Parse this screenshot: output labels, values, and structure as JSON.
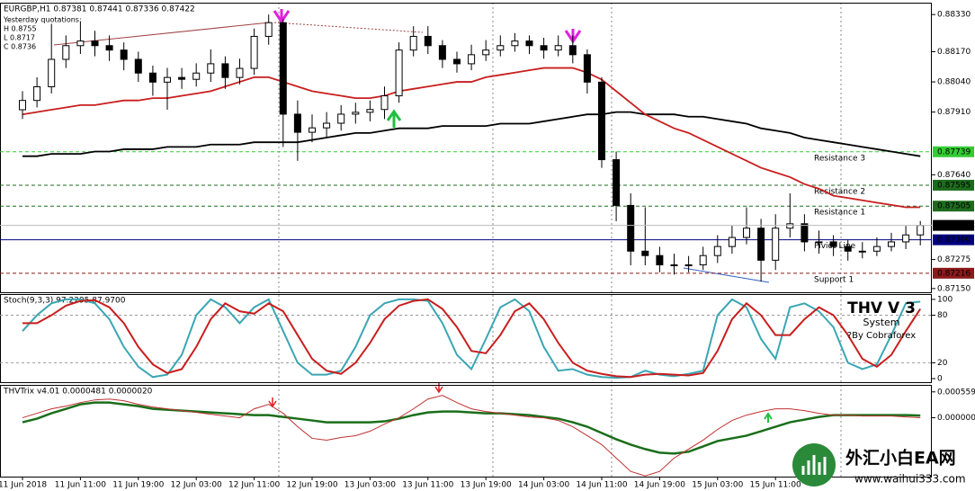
{
  "chart_data": [
    {
      "type": "candlestick",
      "title": "EURGBP,H1 0.87381 0.87441 0.87336 0.87422",
      "annotations": [
        "Yesterday quotations:",
        "H 0.8755",
        "L 0.8717",
        "C 0.8736"
      ],
      "categories": [
        "11 Jun 2018",
        null,
        null,
        null,
        "11 Jun 11:00",
        null,
        null,
        null,
        "11 Jun 19:00",
        null,
        null,
        null,
        "12 Jun 03:00",
        null,
        null,
        null,
        "12 Jun 11:00",
        null,
        null,
        null,
        "12 Jun 19:00",
        null,
        null,
        null,
        "13 Jun 03:00",
        null,
        null,
        null,
        "13 Jun 11:00",
        null,
        null,
        null,
        "13 Jun 19:00",
        null,
        null,
        null,
        "14 Jun 03:00",
        null,
        null,
        null,
        "14 Jun 11:00",
        null,
        null,
        null,
        "14 Jun 19:00",
        null,
        null,
        null,
        "15 Jun 03:00",
        null,
        null,
        null,
        "15 Jun 11:00",
        null,
        null,
        null,
        null,
        null,
        null,
        null,
        null,
        null,
        null
      ],
      "open": [
        0.8792,
        0.8796,
        0.88019,
        0.88137,
        0.88196,
        0.88216,
        0.88196,
        0.88177,
        0.88137,
        0.88078,
        0.88039,
        0.88059,
        0.88051,
        0.88078,
        0.88118,
        0.88059,
        0.88098,
        0.88236,
        0.88295,
        0.87901,
        0.87823,
        0.87842,
        0.87862,
        0.87901,
        0.87909,
        0.87921,
        0.8798,
        0.88177,
        0.88236,
        0.88196,
        0.88137,
        0.88118,
        0.88157,
        0.88177,
        0.88196,
        0.88216,
        0.88196,
        0.88177,
        0.88196,
        0.88157,
        0.88039,
        0.87705,
        0.87508,
        0.87311,
        0.87292,
        0.87252,
        0.87252,
        0.87252,
        0.87292,
        0.87331,
        0.8737,
        0.8741,
        0.87272,
        0.8741,
        0.87429,
        0.87351,
        0.87351,
        0.87331,
        0.87311,
        0.87311,
        0.87331,
        0.87351,
        0.87381
      ],
      "high": [
        0.88,
        0.8806,
        0.8829,
        0.8824,
        0.883,
        0.8826,
        0.8824,
        0.8821,
        0.8817,
        0.8811,
        0.881,
        0.881,
        0.8812,
        0.8818,
        0.8815,
        0.8814,
        0.8827,
        0.8833,
        0.8831,
        0.8796,
        0.879,
        0.8791,
        0.8794,
        0.8795,
        0.8796,
        0.8802,
        0.8821,
        0.8828,
        0.8828,
        0.8822,
        0.8817,
        0.882,
        0.8822,
        0.8824,
        0.8825,
        0.8824,
        0.8823,
        0.8824,
        0.8824,
        0.8818,
        0.8806,
        0.8774,
        0.8756,
        0.875,
        0.8733,
        0.873,
        0.8729,
        0.8733,
        0.8738,
        0.8742,
        0.875,
        0.8745,
        0.8747,
        0.8756,
        0.8747,
        0.874,
        0.8738,
        0.8736,
        0.8735,
        0.8737,
        0.8739,
        0.8742,
        0.87441
      ],
      "low": [
        0.8788,
        0.8793,
        0.8799,
        0.881,
        0.8816,
        0.8815,
        0.8813,
        0.8809,
        0.8804,
        0.8798,
        0.8792,
        0.8801,
        0.8802,
        0.8804,
        0.8801,
        0.8803,
        0.8807,
        0.882,
        0.8776,
        0.877,
        0.8778,
        0.878,
        0.8783,
        0.8786,
        0.8787,
        0.8788,
        0.8795,
        0.8815,
        0.8816,
        0.881,
        0.8808,
        0.8809,
        0.8813,
        0.8815,
        0.8817,
        0.8816,
        0.8814,
        0.8815,
        0.8812,
        0.8799,
        0.8767,
        0.8744,
        0.8725,
        0.8725,
        0.8722,
        0.8721,
        0.8722,
        0.8723,
        0.8726,
        0.873,
        0.8734,
        0.8718,
        0.8723,
        0.8737,
        0.8731,
        0.873,
        0.8729,
        0.8727,
        0.8728,
        0.8729,
        0.8731,
        0.8732,
        0.87336
      ],
      "close": [
        0.8796,
        0.88019,
        0.88137,
        0.88196,
        0.88216,
        0.88196,
        0.88177,
        0.88137,
        0.88078,
        0.88039,
        0.88059,
        0.88051,
        0.88078,
        0.88118,
        0.88059,
        0.88098,
        0.88236,
        0.88295,
        0.87901,
        0.87823,
        0.87842,
        0.87862,
        0.87901,
        0.87909,
        0.87921,
        0.8798,
        0.88177,
        0.88236,
        0.88196,
        0.88137,
        0.88118,
        0.88157,
        0.88177,
        0.88196,
        0.88216,
        0.88196,
        0.88177,
        0.88196,
        0.88157,
        0.88039,
        0.87705,
        0.87508,
        0.87311,
        0.87292,
        0.87252,
        0.87252,
        0.87252,
        0.87292,
        0.87331,
        0.8737,
        0.8741,
        0.87272,
        0.8741,
        0.87429,
        0.87351,
        0.87351,
        0.87331,
        0.87311,
        0.87311,
        0.87331,
        0.87351,
        0.87381,
        0.87422
      ],
      "up_color": "#ffffff",
      "down_color": "#000000",
      "lines": [
        {
          "color": "#000000",
          "values": [
            0.8772,
            0.8772,
            0.8773,
            0.8773,
            0.8773,
            0.8774,
            0.8774,
            0.8775,
            0.8775,
            0.8775,
            0.8776,
            0.8776,
            0.8776,
            0.8777,
            0.8777,
            0.8777,
            0.8778,
            0.8778,
            0.8778,
            0.8778,
            0.8779,
            0.878,
            0.8781,
            0.8782,
            0.8782,
            0.8783,
            0.8784,
            0.8784,
            0.8784,
            0.8785,
            0.8785,
            0.8785,
            0.8785,
            0.8786,
            0.8786,
            0.8786,
            0.8787,
            0.8788,
            0.8789,
            0.879,
            0.879,
            0.8791,
            0.8791,
            0.879,
            0.879,
            0.879,
            0.8789,
            0.8789,
            0.8788,
            0.8787,
            0.8786,
            0.8784,
            0.8783,
            0.8782,
            0.878,
            0.8779,
            0.8778,
            0.8777,
            0.8776,
            0.8775,
            0.8774,
            0.8773,
            0.8772
          ]
        },
        {
          "color": "#c81e1e",
          "values": [
            0.879,
            0.8791,
            0.8792,
            0.8793,
            0.8794,
            0.8794,
            0.8795,
            0.8796,
            0.8796,
            0.8797,
            0.8797,
            0.8798,
            0.8799,
            0.88,
            0.8802,
            0.8804,
            0.8806,
            0.8806,
            0.8804,
            0.8802,
            0.88,
            0.8799,
            0.8798,
            0.8797,
            0.8797,
            0.8798,
            0.88,
            0.8801,
            0.8802,
            0.8803,
            0.8804,
            0.8804,
            0.8806,
            0.8807,
            0.8808,
            0.8809,
            0.881,
            0.881,
            0.881,
            0.8808,
            0.8805,
            0.88,
            0.8795,
            0.879,
            0.8787,
            0.8784,
            0.8782,
            0.8779,
            0.8776,
            0.8773,
            0.877,
            0.8767,
            0.8765,
            0.8763,
            0.876,
            0.8758,
            0.8755,
            0.8754,
            0.8753,
            0.8752,
            0.8751,
            0.875,
            0.875
          ]
        }
      ],
      "levels": [
        {
          "name": "Resistance 3",
          "value": 0.87739,
          "color": "#33cc33",
          "label_color": "#2db82d"
        },
        {
          "name": "Resistance 2",
          "value": 0.87595,
          "color": "#1e6b1e",
          "label_color": "#8b3010"
        },
        {
          "name": "Resistance 1",
          "value": 0.87505,
          "color": "#1e6b1e",
          "label_color": "#2a7d2a"
        },
        {
          "name": "Piviot Line",
          "value": 0.8736,
          "value_label": "0.87360",
          "color": "#000080",
          "label_color": "#000080"
        },
        {
          "name": "Support 1",
          "value": 0.87216,
          "color": "#8b1a1a",
          "label_color": "#8b1a1a"
        }
      ],
      "current_color": "#000000",
      "ylim": [
        0.87134,
        0.88381
      ],
      "yticks": [
        {
          "value": 0.8833,
          "label": "0.88330"
        },
        {
          "value": 0.8817,
          "label": "0.88170"
        },
        {
          "value": 0.8804,
          "label": "0.88040"
        },
        {
          "value": 0.8791,
          "label": "0.87910"
        },
        {
          "value": 0.8764,
          "label": "0.87640"
        },
        0.87275,
        {
          "value": 0.8715,
          "label": "0.87150"
        }
      ]
    },
    {
      "type": "line",
      "title": "Stoch(9,3,3) 97.2295 87.9700",
      "annotations": [
        "THV V 3",
        "System",
        "?By Cobraforex"
      ],
      "series": [
        {
          "color": "#3aa6b4",
          "values": [
            60,
            80,
            95,
            100,
            100,
            95,
            75,
            40,
            15,
            2,
            5,
            30,
            80,
            100,
            90,
            70,
            90,
            100,
            60,
            20,
            5,
            5,
            10,
            40,
            80,
            95,
            100,
            100,
            98,
            70,
            30,
            12,
            50,
            90,
            100,
            85,
            40,
            10,
            12,
            5,
            2,
            1,
            2,
            10,
            5,
            3,
            6,
            10,
            80,
            100,
            90,
            50,
            25,
            90,
            95,
            85,
            65,
            20,
            12,
            18,
            55,
            95,
            97.2295
          ]
        },
        {
          "color": "#c81e1e",
          "values": [
            70,
            70,
            80,
            92,
            98,
            99,
            90,
            70,
            40,
            18,
            7,
            12,
            40,
            75,
            95,
            85,
            82,
            95,
            85,
            55,
            25,
            10,
            6,
            20,
            45,
            75,
            92,
            98,
            100,
            88,
            65,
            35,
            32,
            55,
            85,
            95,
            75,
            45,
            20,
            10,
            6,
            3,
            2,
            5,
            6,
            5,
            4,
            7,
            35,
            75,
            95,
            80,
            55,
            55,
            75,
            90,
            80,
            55,
            25,
            15,
            30,
            60,
            87.97
          ]
        }
      ],
      "ylim": [
        -4.5,
        106.7
      ],
      "yticks": [
        100,
        80,
        20,
        0
      ]
    },
    {
      "type": "line",
      "title": "THVTrix v4.01 0.0000481 0.0000020",
      "series": [
        {
          "color": "#1a6e1a",
          "width": 2.5,
          "values": [
            -9.7e-05,
            -1.9e-05,
            9.7e-05,
            0.000193,
            0.00029,
            0.000328,
            0.000328,
            0.00029,
            0.000251,
            0.000193,
            0.000174,
            0.000154,
            0.000135,
            0.000116,
            9.7e-05,
            7.7e-05,
            5.8e-05,
            5.8e-05,
            1.9e-05,
            -1.9e-05,
            -5.8e-05,
            -9.7e-05,
            -9.7e-05,
            -9.7e-05,
            -9.7e-05,
            -7.7e-05,
            -1.9e-05,
            5.8e-05,
            0.000116,
            0.000135,
            0.000135,
            0.000116,
            9.7e-05,
            9.7e-05,
            7.7e-05,
            5.8e-05,
            1.9e-05,
            -1.9e-05,
            -9.7e-05,
            -0.000193,
            -0.000328,
            -0.000463,
            -0.000579,
            -0.000676,
            -0.000753,
            -0.000772,
            -0.000733,
            -0.000618,
            -0.000502,
            -0.000444,
            -0.000386,
            -0.00029,
            -0.000193,
            -9.7e-05,
            -3.9e-05,
            1.9e-05,
            5.8e-05,
            5.8e-05,
            5.8e-05,
            5.8e-05,
            5.8e-05,
            5.8e-05,
            4.81e-05
          ]
        },
        {
          "color": "#c03030",
          "width": 1,
          "values": [
            0,
            9.7e-05,
            0.000193,
            0.000251,
            0.000328,
            0.000386,
            0.000405,
            0.000367,
            0.00029,
            0.000232,
            0.000193,
            0.000154,
            0.000116,
            7.7e-05,
            3.9e-05,
            0,
            0.000193,
            0.00029,
            9.7e-05,
            -0.000193,
            -0.000444,
            -0.000483,
            -0.000425,
            -0.000386,
            -0.00029,
            -0.000135,
            0,
            0.000193,
            0.000405,
            0.000483,
            0.000328,
            0.000193,
            0.000135,
            9.7e-05,
            5.8e-05,
            1.9e-05,
            0,
            -5.8e-05,
            -0.000193,
            -0.000386,
            -0.000579,
            -0.000869,
            -0.001158,
            -0.001255,
            -0.001158,
            -0.000869,
            -0.000676,
            -0.000483,
            -0.000251,
            -5.8e-05,
            5.8e-05,
            0.000135,
            0.000193,
            0.000193,
            0.000154,
            9.7e-05,
            5.8e-05,
            5.8e-05,
            3.9e-05,
            3.9e-05,
            3.9e-05,
            1.9e-05,
            2e-06
          ]
        }
      ],
      "ylim": [
        -0.00127,
        0.00071
      ],
      "yticks": [
        0.000559,
        {
          "value": 0,
          "label": "0.000000"
        }
      ]
    }
  ],
  "watermark": {
    "title": "外汇小白EA网",
    "url": "www.waihui333.com"
  }
}
